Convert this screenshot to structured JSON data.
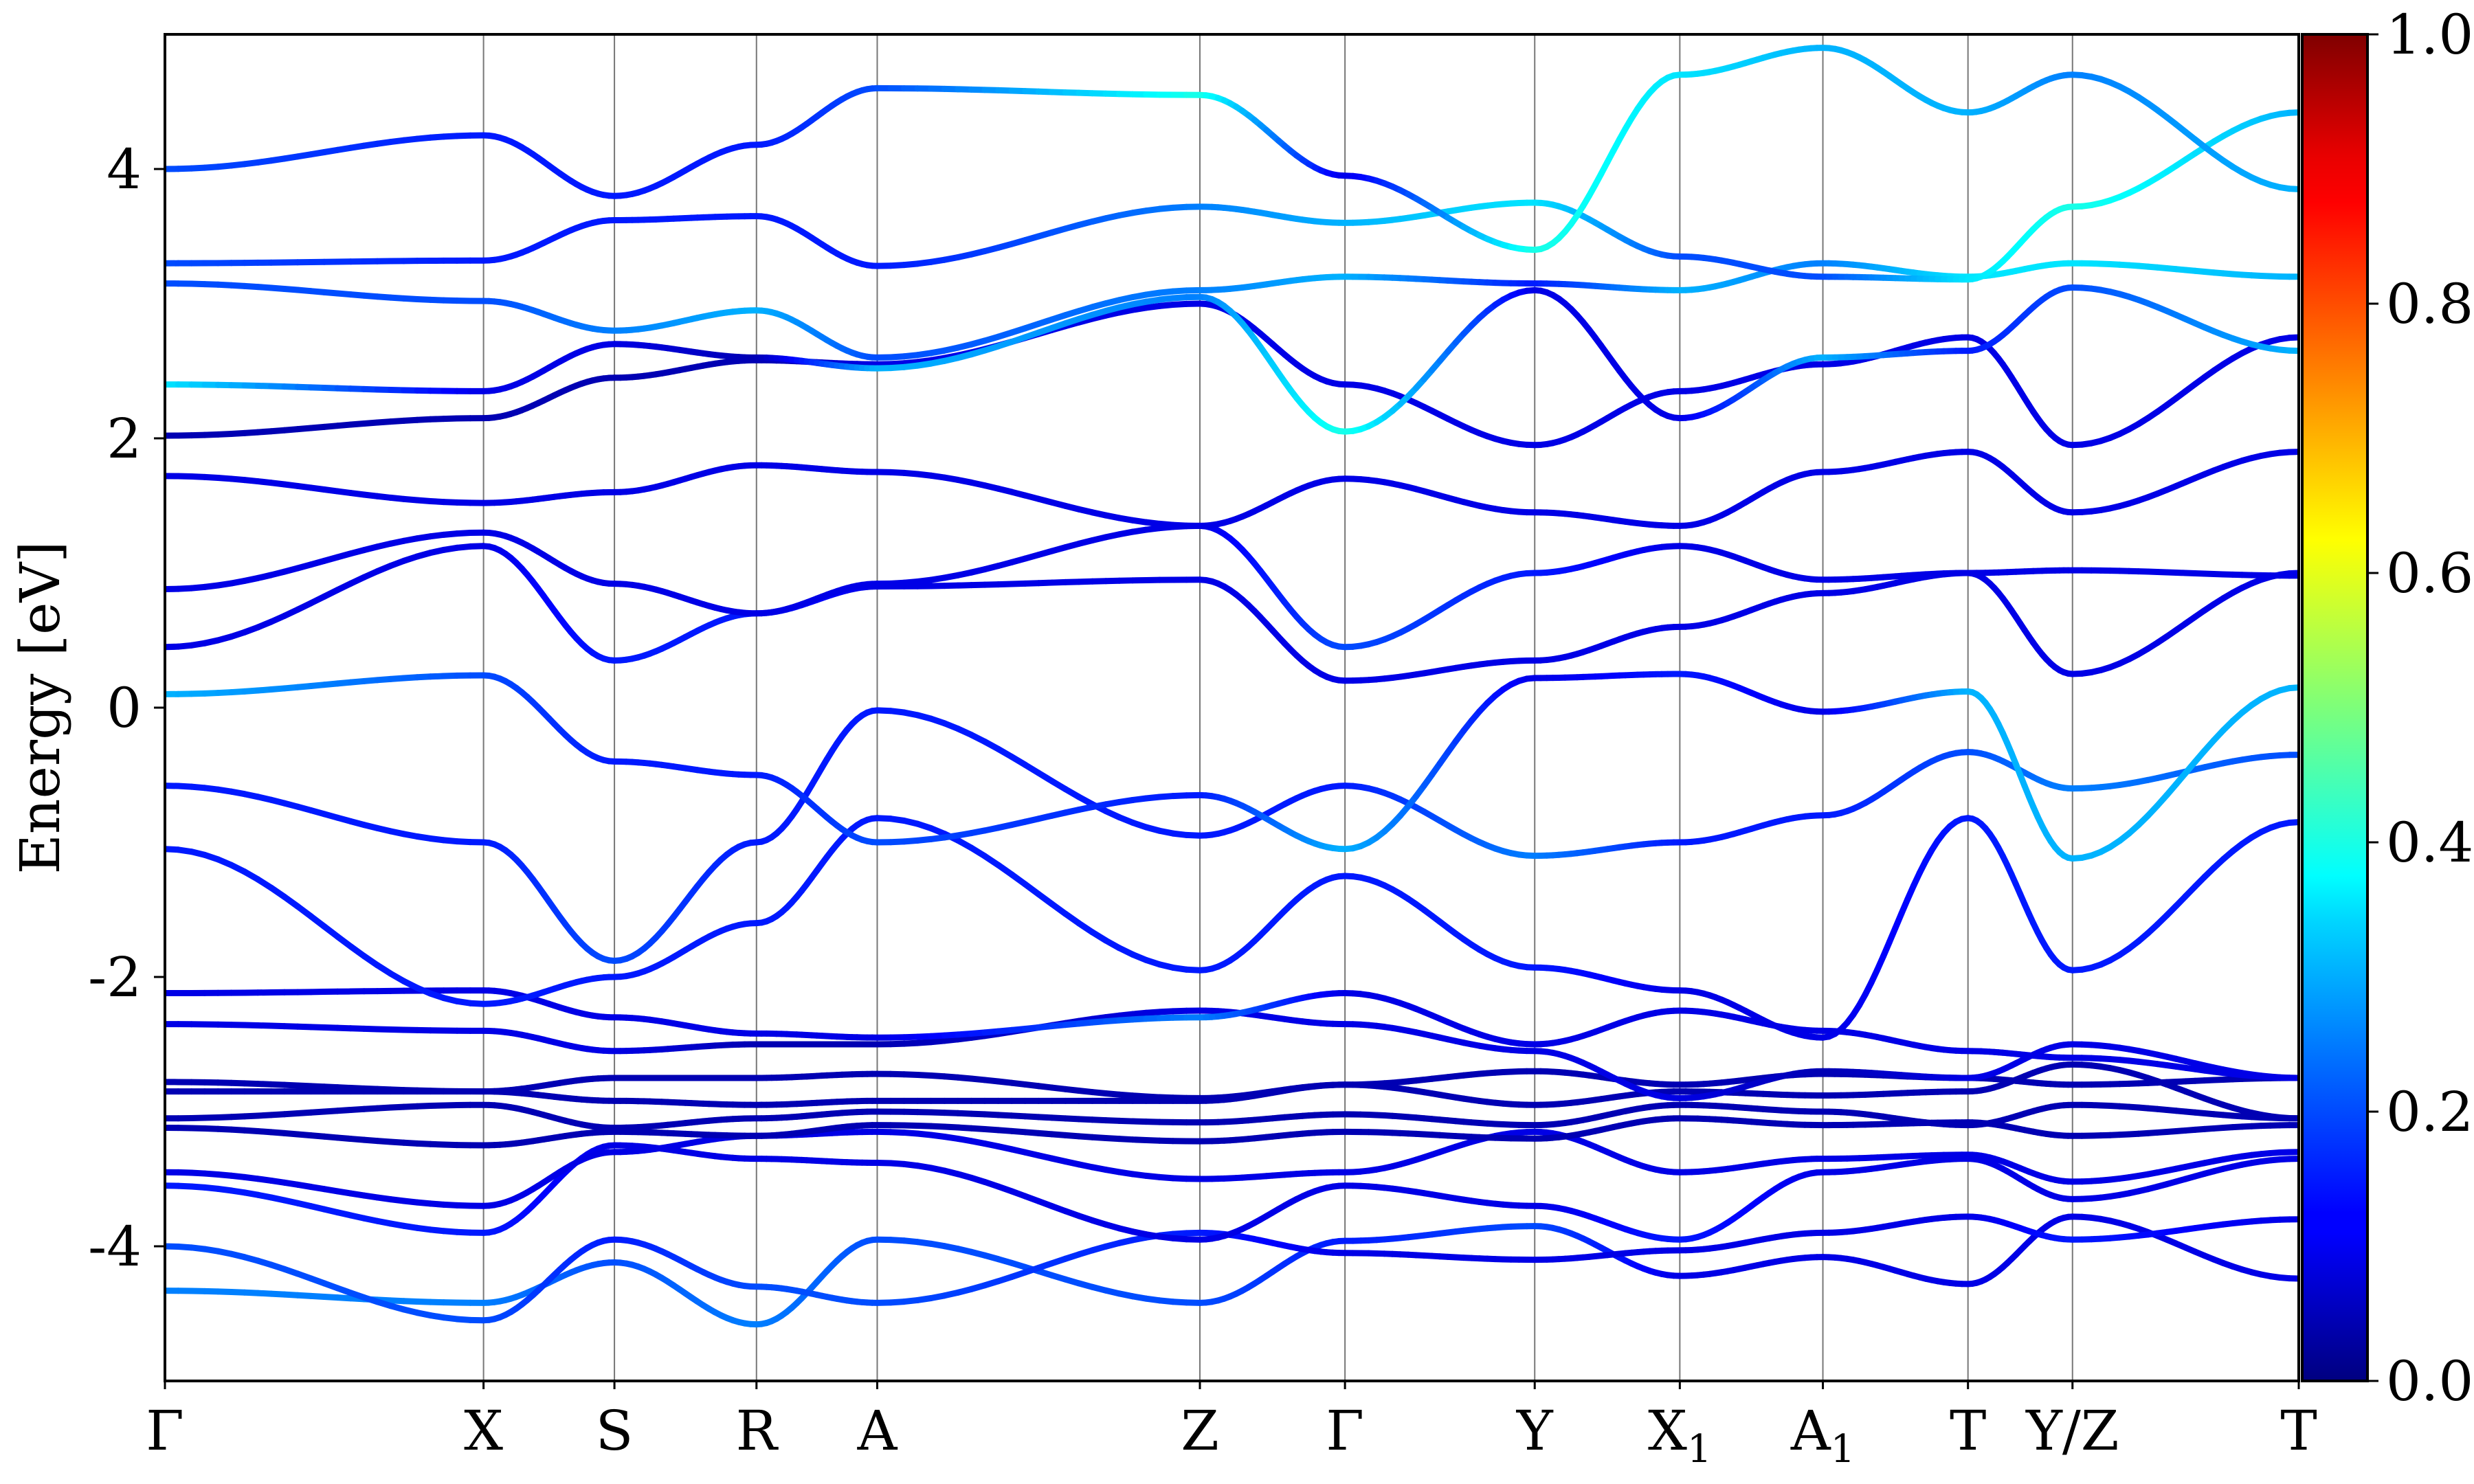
{
  "chart_data": {
    "type": "line",
    "subtype": "electronic band structure with projected weight color map",
    "ylabel": "Energy [eV]",
    "xlabel": "",
    "title": "",
    "ylim": [
      -5,
      5
    ],
    "y_major_ticks": [
      -4,
      -2,
      0,
      2,
      4
    ],
    "y_tick_labels": [
      "-4",
      "-2",
      "0",
      "2",
      "4"
    ],
    "k_path_positions": [
      0,
      3.14,
      4.43,
      5.83,
      7.02,
      10.2,
      11.63,
      13.5,
      14.93,
      16.34,
      17.77,
      18.8,
      21.03
    ],
    "k_path_labels": [
      {
        "main": "Γ",
        "sub": ""
      },
      {
        "main": "X",
        "sub": ""
      },
      {
        "main": "S",
        "sub": ""
      },
      {
        "main": "R",
        "sub": ""
      },
      {
        "main": "A",
        "sub": ""
      },
      {
        "main": "Z",
        "sub": ""
      },
      {
        "main": "Γ",
        "sub": ""
      },
      {
        "main": "Y",
        "sub": ""
      },
      {
        "main": "X",
        "sub": "1"
      },
      {
        "main": "A",
        "sub": "1"
      },
      {
        "main": "T",
        "sub": ""
      },
      {
        "main": "Y/Z",
        "sub": ""
      },
      {
        "main": "T",
        "sub": ""
      }
    ],
    "xlim": [
      0,
      21.03
    ],
    "grid": "vertical lines at high-symmetry points",
    "colorbar": {
      "colormap": "jet",
      "range": [
        0.0,
        1.0
      ],
      "ticks": [
        0.0,
        0.2,
        0.4,
        0.6,
        0.8,
        1.0
      ],
      "tick_labels": [
        "0.0",
        "0.2",
        "0.4",
        "0.6",
        "0.8",
        "1.0"
      ]
    },
    "series": [
      {
        "values": [
          -4.33,
          -4.42,
          -4.12,
          -4.58,
          -3.95,
          -4.42,
          -3.96,
          -3.85,
          -4.22,
          -4.08,
          -4.28,
          -3.78,
          -4.24
        ],
        "weights": [
          0.25,
          0.25,
          0.2,
          0.25,
          0.2,
          0.2,
          0.15,
          0.2,
          0.1,
          0.1,
          0.1,
          0.1,
          0.1
        ]
      },
      {
        "values": [
          -4.0,
          -4.55,
          -3.95,
          -4.3,
          -4.42,
          -3.9,
          -4.05,
          -4.1,
          -4.03,
          -3.9,
          -3.78,
          -3.95,
          -3.8
        ],
        "weights": [
          0.2,
          0.2,
          0.15,
          0.2,
          0.2,
          0.15,
          0.1,
          0.1,
          0.1,
          0.1,
          0.1,
          0.15,
          0.1
        ]
      },
      {
        "values": [
          -3.55,
          -3.9,
          -3.25,
          -3.35,
          -3.38,
          -3.95,
          -3.55,
          -3.7,
          -3.95,
          -3.45,
          -3.35,
          -3.65,
          -3.35
        ],
        "weights": [
          0.15,
          0.15,
          0.1,
          0.1,
          0.1,
          0.1,
          0.1,
          0.1,
          0.15,
          0.1,
          0.1,
          0.1,
          0.1
        ]
      },
      {
        "values": [
          -3.45,
          -3.7,
          -3.3,
          -3.18,
          -3.15,
          -3.5,
          -3.45,
          -3.15,
          -3.45,
          -3.35,
          -3.32,
          -3.52,
          -3.3
        ],
        "weights": [
          0.1,
          0.1,
          0.1,
          0.1,
          0.1,
          0.1,
          0.1,
          0.1,
          0.1,
          0.1,
          0.1,
          0.1,
          0.1
        ]
      },
      {
        "values": [
          -3.12,
          -3.25,
          -3.15,
          -3.18,
          -3.1,
          -3.22,
          -3.15,
          -3.2,
          -3.05,
          -3.1,
          -3.08,
          -3.18,
          -3.1
        ],
        "weights": [
          0.05,
          0.05,
          0.05,
          0.05,
          0.05,
          0.05,
          0.05,
          0.05,
          0.05,
          0.05,
          0.05,
          0.05,
          0.05
        ]
      },
      {
        "values": [
          -3.05,
          -2.95,
          -3.12,
          -3.05,
          -3.0,
          -3.08,
          -3.02,
          -3.1,
          -2.95,
          -3.0,
          -3.1,
          -2.95,
          -3.05
        ],
        "weights": [
          0.05,
          0.05,
          0.05,
          0.05,
          0.05,
          0.05,
          0.05,
          0.05,
          0.05,
          0.05,
          0.05,
          0.05,
          0.05
        ]
      },
      {
        "values": [
          -2.85,
          -2.85,
          -2.92,
          -2.95,
          -2.92,
          -2.92,
          -2.8,
          -2.95,
          -2.85,
          -2.88,
          -2.85,
          -2.65,
          -3.05
        ],
        "weights": [
          0.05,
          0.05,
          0.05,
          0.05,
          0.05,
          0.05,
          0.05,
          0.05,
          0.05,
          0.05,
          0.05,
          0.05,
          0.05
        ]
      },
      {
        "values": [
          -2.78,
          -2.85,
          -2.75,
          -2.75,
          -2.72,
          -2.9,
          -2.8,
          -2.7,
          -2.8,
          -2.72,
          -2.75,
          -2.8,
          -2.75
        ],
        "weights": [
          0.05,
          0.05,
          0.05,
          0.05,
          0.05,
          0.05,
          0.05,
          0.05,
          0.05,
          0.05,
          0.05,
          0.05,
          0.05
        ]
      },
      {
        "values": [
          -2.35,
          -2.4,
          -2.55,
          -2.5,
          -2.5,
          -2.25,
          -2.35,
          -2.55,
          -2.9,
          -2.7,
          -2.75,
          -2.5,
          -2.75
        ],
        "weights": [
          0.1,
          0.1,
          0.1,
          0.05,
          0.05,
          0.1,
          0.1,
          0.1,
          0.1,
          0.05,
          0.1,
          0.1,
          0.1
        ]
      },
      {
        "values": [
          -2.12,
          -2.1,
          -2.3,
          -2.42,
          -2.45,
          -2.3,
          -2.12,
          -2.5,
          -2.25,
          -2.4,
          -2.55,
          -2.6,
          -2.75
        ],
        "weights": [
          0.1,
          0.1,
          0.1,
          0.1,
          0.1,
          0.25,
          0.1,
          0.1,
          0.1,
          0.1,
          0.1,
          0.1,
          0.1
        ]
      },
      {
        "values": [
          -1.05,
          -2.2,
          -2.0,
          -1.6,
          -0.82,
          -1.95,
          -1.25,
          -1.93,
          -2.1,
          -2.45,
          -0.82,
          -1.95,
          -0.85
        ],
        "weights": [
          0.15,
          0.15,
          0.15,
          0.15,
          0.15,
          0.15,
          0.15,
          0.15,
          0.1,
          0.1,
          0.15,
          0.15,
          0.15
        ]
      },
      {
        "values": [
          -0.58,
          -1.0,
          -1.88,
          -1.0,
          -0.02,
          -0.95,
          -0.58,
          -1.1,
          -1.0,
          -0.8,
          -0.33,
          -0.6,
          -0.35
        ],
        "weights": [
          0.15,
          0.15,
          0.2,
          0.15,
          0.15,
          0.15,
          0.15,
          0.25,
          0.15,
          0.15,
          0.2,
          0.25,
          0.2
        ]
      },
      {
        "values": [
          0.1,
          0.24,
          -0.4,
          -0.5,
          -1.0,
          -0.65,
          -1.05,
          0.22,
          0.25,
          -0.03,
          0.12,
          -1.12,
          0.15
        ],
        "weights": [
          0.3,
          0.2,
          0.15,
          0.15,
          0.2,
          0.15,
          0.3,
          0.1,
          0.15,
          0.1,
          0.3,
          0.3,
          0.3
        ]
      },
      {
        "values": [
          0.45,
          1.2,
          0.35,
          0.7,
          0.9,
          0.95,
          0.2,
          0.35,
          0.6,
          0.85,
          1.0,
          0.25,
          1.0
        ],
        "weights": [
          0.1,
          0.1,
          0.15,
          0.15,
          0.1,
          0.1,
          0.1,
          0.1,
          0.1,
          0.1,
          0.1,
          0.1,
          0.1
        ]
      },
      {
        "values": [
          0.88,
          1.3,
          0.92,
          0.7,
          0.92,
          1.35,
          0.45,
          1.0,
          1.2,
          0.95,
          1.0,
          1.02,
          0.98
        ],
        "weights": [
          0.1,
          0.1,
          0.1,
          0.1,
          0.1,
          0.1,
          0.2,
          0.15,
          0.1,
          0.1,
          0.1,
          0.1,
          0.1
        ]
      },
      {
        "values": [
          1.72,
          1.52,
          1.6,
          1.8,
          1.75,
          1.35,
          1.7,
          1.45,
          1.35,
          1.75,
          1.9,
          1.45,
          1.9
        ],
        "weights": [
          0.1,
          0.1,
          0.1,
          0.1,
          0.1,
          0.1,
          0.1,
          0.1,
          0.1,
          0.1,
          0.1,
          0.1,
          0.1
        ]
      },
      {
        "values": [
          2.02,
          2.15,
          2.45,
          2.58,
          2.55,
          3.0,
          2.4,
          1.95,
          2.35,
          2.55,
          2.75,
          1.95,
          2.75
        ],
        "weights": [
          0.05,
          0.05,
          0.05,
          0.05,
          0.1,
          0.1,
          0.1,
          0.1,
          0.1,
          0.1,
          0.1,
          0.1,
          0.1
        ]
      },
      {
        "values": [
          2.4,
          2.35,
          2.7,
          2.6,
          2.52,
          3.05,
          2.05,
          3.1,
          2.15,
          2.6,
          2.65,
          3.12,
          2.65
        ],
        "weights": [
          0.35,
          0.1,
          0.1,
          0.05,
          0.3,
          0.25,
          0.4,
          0.1,
          0.1,
          0.3,
          0.15,
          0.2,
          0.3
        ]
      },
      {
        "values": [
          3.15,
          3.02,
          2.8,
          2.95,
          2.6,
          3.1,
          3.2,
          3.15,
          3.1,
          3.3,
          3.2,
          3.3,
          3.2
        ],
        "weights": [
          0.2,
          0.2,
          0.25,
          0.3,
          0.2,
          0.25,
          0.3,
          0.15,
          0.3,
          0.25,
          0.35,
          0.35,
          0.3
        ]
      },
      {
        "values": [
          3.3,
          3.32,
          3.62,
          3.65,
          3.28,
          3.72,
          3.6,
          3.75,
          3.35,
          3.2,
          3.18,
          3.72,
          4.42
        ],
        "weights": [
          0.2,
          0.15,
          0.15,
          0.15,
          0.15,
          0.25,
          0.3,
          0.35,
          0.2,
          0.2,
          0.35,
          0.4,
          0.3
        ]
      },
      {
        "values": [
          4.0,
          4.25,
          3.8,
          4.18,
          4.6,
          4.55,
          3.95,
          3.4,
          4.7,
          4.9,
          4.42,
          4.7,
          3.85
        ],
        "weights": [
          0.2,
          0.15,
          0.15,
          0.15,
          0.2,
          0.4,
          0.1,
          0.4,
          0.35,
          0.3,
          0.3,
          0.25,
          0.3
        ]
      }
    ]
  }
}
